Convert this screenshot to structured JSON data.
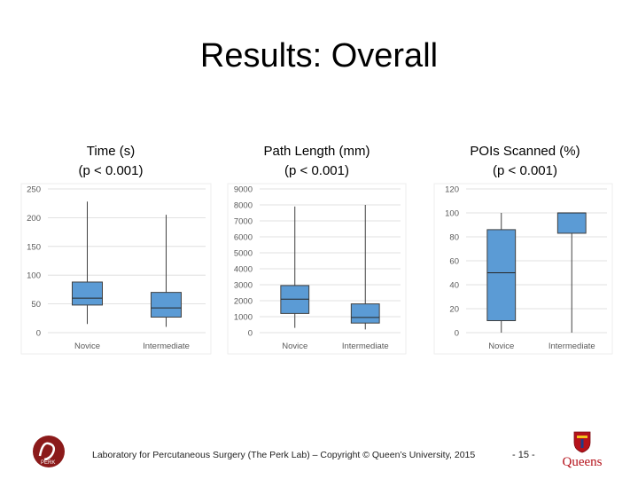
{
  "slide": {
    "title": "Results: Overall",
    "footer": "Laboratory for Percutaneous Surgery (The Perk Lab) – Copyright © Queen’s University, 2015",
    "page_number": "- 15 -",
    "logo_left_text": "PERK",
    "logo_right_text": "Queens"
  },
  "charts": [
    {
      "heading_line1": "Time (s)",
      "heading_line2": "(p < 0.001)"
    },
    {
      "heading_line1": "Path Length (mm)",
      "heading_line2": "(p < 0.001)"
    },
    {
      "heading_line1": "POIs Scanned (%)",
      "heading_line2": "(p < 0.001)"
    }
  ],
  "chart_data": [
    {
      "type": "box",
      "title": "Time (s)",
      "categories": [
        "Novice",
        "Intermediate"
      ],
      "ylim": [
        0,
        250
      ],
      "yticks": [
        0,
        50,
        100,
        150,
        200,
        250
      ],
      "boxes": [
        {
          "category": "Novice",
          "min": 15,
          "q1": 48,
          "median": 60,
          "q3": 88,
          "max": 228
        },
        {
          "category": "Intermediate",
          "min": 10,
          "q1": 27,
          "median": 43,
          "q3": 70,
          "max": 205
        }
      ],
      "box_color": "#5b9bd5",
      "grid": true
    },
    {
      "type": "box",
      "title": "Path Length (mm)",
      "categories": [
        "Novice",
        "Intermediate"
      ],
      "ylim": [
        0,
        9000
      ],
      "yticks": [
        0,
        1000,
        2000,
        3000,
        4000,
        5000,
        6000,
        7000,
        8000,
        9000
      ],
      "boxes": [
        {
          "category": "Novice",
          "min": 300,
          "q1": 1200,
          "median": 2100,
          "q3": 2950,
          "max": 7900
        },
        {
          "category": "Intermediate",
          "min": 200,
          "q1": 600,
          "median": 950,
          "q3": 1800,
          "max": 8000
        }
      ],
      "box_color": "#5b9bd5",
      "grid": true
    },
    {
      "type": "box",
      "title": "POIs Scanned (%)",
      "categories": [
        "Novice",
        "Intermediate"
      ],
      "ylim": [
        0,
        120
      ],
      "yticks": [
        0,
        20,
        40,
        60,
        80,
        100,
        120
      ],
      "boxes": [
        {
          "category": "Novice",
          "min": 0,
          "q1": 10,
          "median": 50,
          "q3": 86,
          "max": 100
        },
        {
          "category": "Intermediate",
          "min": 0,
          "q1": 83,
          "median": 100,
          "q3": 100,
          "max": 100
        }
      ],
      "box_color": "#5b9bd5",
      "grid": true
    }
  ]
}
